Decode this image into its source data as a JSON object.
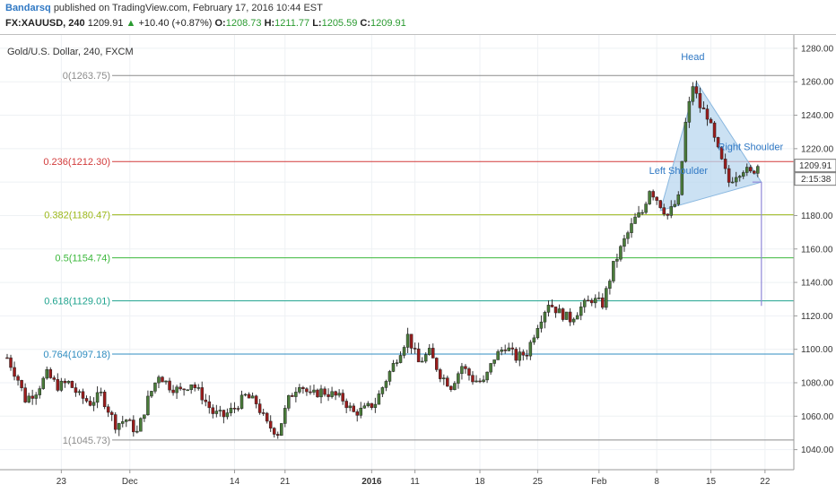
{
  "header": {
    "author": "Bandarsq",
    "published": "published on TradingView.com, February 17, 2016 10:44 EST",
    "symbol": "FX:XAUUSD, 240",
    "last": "1209.91",
    "up_arrow": "▲",
    "change": "+10.40 (+0.87%)",
    "o_label": "O:",
    "o_value": "1208.73",
    "h_label": "H:",
    "h_value": "1211.77",
    "l_label": "L:",
    "l_value": "1205.59",
    "c_label": "C:",
    "c_value": "1209.91"
  },
  "chart_data": {
    "type": "line",
    "title": "Gold/U.S. Dollar, 240, FXCM",
    "xlabel": "",
    "ylabel": "",
    "ylim": [
      1028,
      1288
    ],
    "y_ticks": [
      "1280.00",
      "1260.00",
      "1240.00",
      "1220.00",
      "1200.00",
      "1180.00",
      "1160.00",
      "1140.00",
      "1120.00",
      "1100.00",
      "1080.00",
      "1060.00",
      "1040.00"
    ],
    "y_tick_values": [
      1280,
      1260,
      1240,
      1220,
      1200,
      1180,
      1160,
      1140,
      1120,
      1100,
      1080,
      1060,
      1040
    ],
    "x_tick_labels": [
      "23",
      "Dec",
      "14",
      "21",
      "2016",
      "11",
      "18",
      "25",
      "Feb",
      "8",
      "15",
      "22"
    ],
    "x_tick_index": [
      15,
      34,
      63,
      77,
      101,
      113,
      131,
      147,
      164,
      180,
      195,
      210
    ],
    "x_index_range": [
      0,
      216
    ],
    "grid": true,
    "last_price_label": "1209.91",
    "countdown_label": "2:15:38",
    "fib_levels": [
      {
        "label": "0(1263.75)",
        "value": 1263.75,
        "color": "#8c8c8c"
      },
      {
        "label": "0.236(1212.30)",
        "value": 1212.3,
        "color": "#d23b3b"
      },
      {
        "label": "0.382(1180.47)",
        "value": 1180.47,
        "color": "#9cb81a"
      },
      {
        "label": "0.5(1154.74)",
        "value": 1154.74,
        "color": "#3cb83c"
      },
      {
        "label": "0.618(1129.01)",
        "value": 1129.01,
        "color": "#1fa38e"
      },
      {
        "label": "0.764(1097.18)",
        "value": 1097.18,
        "color": "#2f8dc0"
      },
      {
        "label": "1(1045.73)",
        "value": 1045.73,
        "color": "#8c8c8c"
      }
    ],
    "close_series": {
      "name": "",
      "x_index": [
        0,
        3,
        5,
        8,
        11,
        14,
        17,
        20,
        23,
        26,
        30,
        33,
        36,
        39,
        42,
        45,
        48,
        51,
        54,
        57,
        60,
        63,
        66,
        69,
        72,
        75,
        78,
        81,
        84,
        87,
        90,
        93,
        96,
        99,
        102,
        105,
        108,
        111,
        114,
        117,
        120,
        123,
        126,
        129,
        132,
        135,
        138,
        141,
        144,
        147,
        150,
        153,
        156,
        159,
        162,
        165,
        168,
        171,
        174,
        176,
        178,
        180,
        183,
        186,
        188,
        190,
        192,
        194,
        196,
        198,
        200,
        202,
        204,
        206,
        208
      ],
      "values": [
        1095,
        1082,
        1070,
        1075,
        1085,
        1078,
        1080,
        1072,
        1068,
        1073,
        1055,
        1058,
        1050,
        1070,
        1085,
        1078,
        1075,
        1080,
        1072,
        1062,
        1060,
        1065,
        1072,
        1068,
        1055,
        1050,
        1070,
        1080,
        1072,
        1075,
        1073,
        1070,
        1062,
        1064,
        1068,
        1082,
        1095,
        1108,
        1092,
        1098,
        1085,
        1078,
        1090,
        1082,
        1080,
        1095,
        1102,
        1095,
        1098,
        1115,
        1128,
        1122,
        1118,
        1125,
        1130,
        1127,
        1150,
        1165,
        1178,
        1182,
        1196,
        1190,
        1180,
        1190,
        1235,
        1258,
        1245,
        1240,
        1225,
        1212,
        1200,
        1205,
        1208,
        1205,
        1210
      ]
    },
    "annotations": [
      {
        "text": "Head",
        "x_index": 190,
        "y": 1273
      },
      {
        "text": "Left Shoulder",
        "x_index": 186,
        "y": 1205
      },
      {
        "text": "Right Shoulder",
        "x_index": 206,
        "y": 1219
      }
    ],
    "pattern_triangle": {
      "points": [
        [
          181,
          1183
        ],
        [
          191,
          1260
        ],
        [
          209,
          1200
        ]
      ],
      "fill": "#b9d7ef"
    },
    "projection": {
      "from_x_index": 209,
      "from_y": 1200,
      "to_y": 1126
    }
  }
}
